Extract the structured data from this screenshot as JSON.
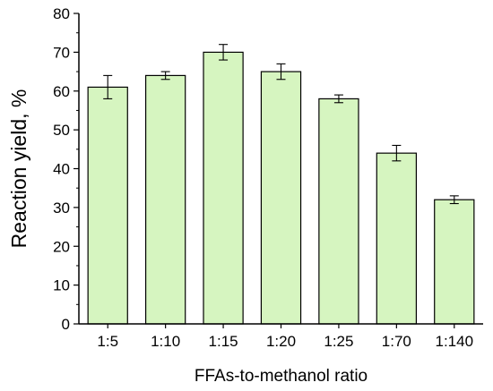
{
  "chart_data": {
    "type": "bar",
    "xlabel": "FFAs-to-methanol ratio",
    "ylabel": "Reaction yield, %",
    "categories": [
      "1:5",
      "1:10",
      "1:15",
      "1:20",
      "1:25",
      "1:70",
      "1:140"
    ],
    "values": [
      61,
      64,
      70,
      65,
      58,
      44,
      32
    ],
    "errors": [
      3,
      1,
      2,
      2,
      1,
      2,
      1
    ],
    "ylim": [
      0,
      80
    ],
    "yticks": [
      0,
      10,
      20,
      30,
      40,
      50,
      60,
      70,
      80
    ],
    "grid": false,
    "legend": "none",
    "colors": {
      "bar_fill": "#d6f5c0",
      "bar_stroke": "#000000",
      "axis": "#000000"
    }
  }
}
